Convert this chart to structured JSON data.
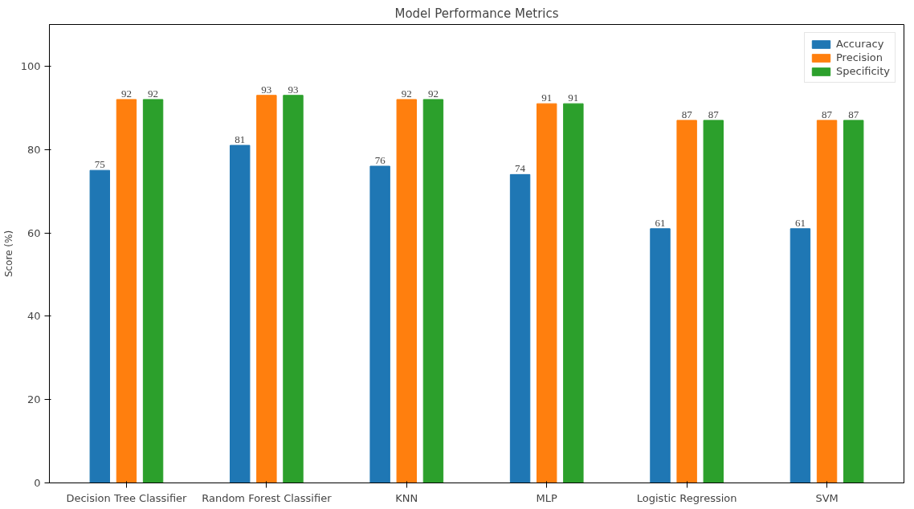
{
  "chart_data": {
    "type": "bar",
    "title": "Model Performance Metrics",
    "ylabel": "Score (%)",
    "categories": [
      "Decision Tree Classifier",
      "Random Forest Classifier",
      "KNN",
      "MLP",
      "Logistic Regression",
      "SVM"
    ],
    "series": [
      {
        "name": "Accuracy",
        "color": "#1f77b4",
        "values": [
          75,
          81,
          76,
          74,
          61,
          61
        ]
      },
      {
        "name": "Precision",
        "color": "#ff7f0e",
        "values": [
          92,
          93,
          92,
          91,
          87,
          87
        ]
      },
      {
        "name": "Specificity",
        "color": "#2ca02c",
        "values": [
          92,
          93,
          92,
          91,
          87,
          87
        ]
      }
    ],
    "ylim": [
      0,
      110
    ],
    "yticks": [
      0,
      20,
      40,
      60,
      80,
      100
    ],
    "data_labels": true,
    "legend": "top right",
    "grid": false
  }
}
